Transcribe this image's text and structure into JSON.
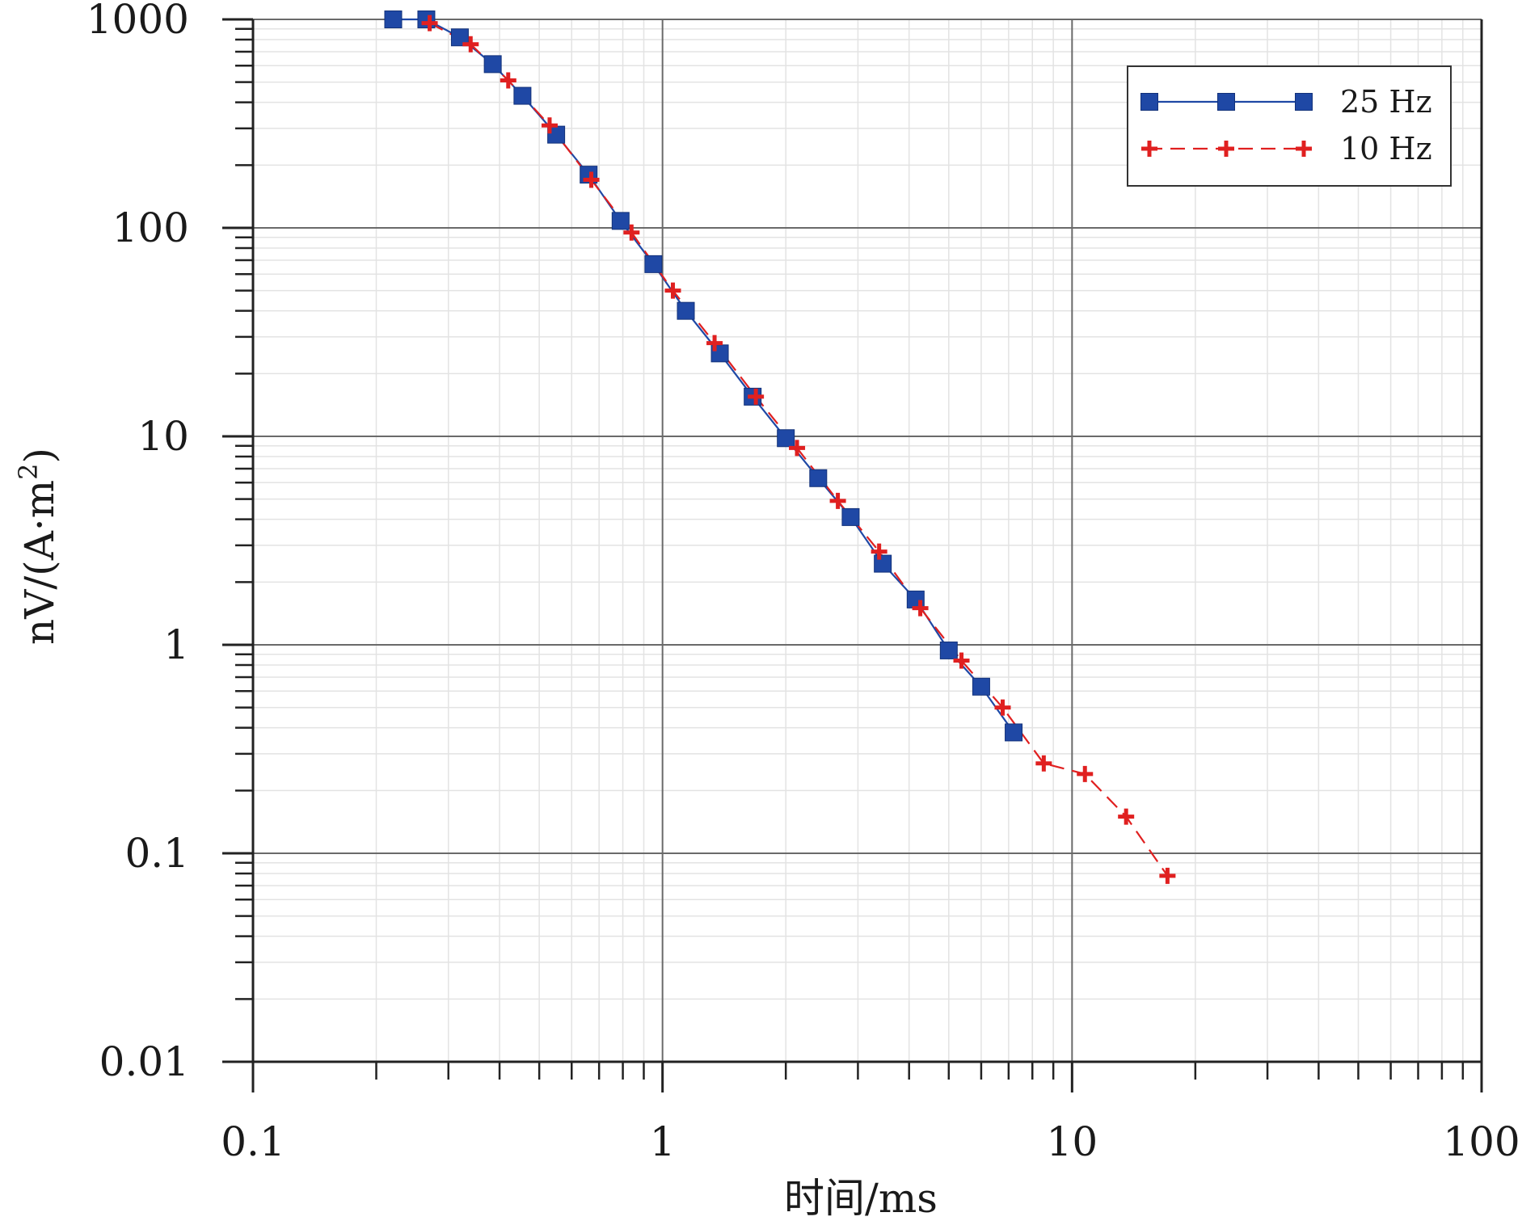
{
  "chart_data": {
    "type": "line",
    "xscale": "log",
    "yscale": "log",
    "xlim": [
      0.1,
      100
    ],
    "ylim": [
      0.01,
      1000
    ],
    "xlabel": "时间/ms",
    "ylabel": "nV/(A·m²)",
    "ylabel_main": "nV/(A·m",
    "ylabel_sup": "2",
    "ylabel_close": ")",
    "x_tick_labels": [
      "0.1",
      "1",
      "10",
      "100"
    ],
    "x_ticks": [
      0.1,
      1,
      10,
      100
    ],
    "y_tick_labels": [
      "0.01",
      "0.1",
      "1",
      "10",
      "100",
      "1000"
    ],
    "y_ticks": [
      0.01,
      0.1,
      1,
      10,
      100,
      1000
    ],
    "grid": true,
    "legend_position": "top-right",
    "series": [
      {
        "name": "25 Hz",
        "color": "#1f48a5",
        "line_style": "solid",
        "marker": "square",
        "x": [
          0.22,
          0.265,
          0.32,
          0.385,
          0.455,
          0.55,
          0.66,
          0.79,
          0.95,
          1.14,
          1.38,
          1.66,
          2.0,
          2.4,
          2.88,
          3.45,
          4.15,
          5.0,
          6.0,
          7.2
        ],
        "y": [
          1000,
          1000,
          820,
          610,
          430,
          280,
          180,
          108,
          67,
          40,
          25,
          15.5,
          9.8,
          6.3,
          4.1,
          2.45,
          1.65,
          0.94,
          0.63,
          0.38
        ]
      },
      {
        "name": "10 Hz",
        "color": "#e02020",
        "line_style": "dashed",
        "marker": "plus",
        "x": [
          0.27,
          0.34,
          0.42,
          0.53,
          0.67,
          0.84,
          1.06,
          1.34,
          1.69,
          2.13,
          2.68,
          3.38,
          4.26,
          5.37,
          6.77,
          8.53,
          10.75,
          13.55,
          17.1
        ],
        "y": [
          960,
          760,
          510,
          310,
          170,
          95,
          50,
          28,
          15.5,
          8.8,
          4.9,
          2.8,
          1.5,
          0.84,
          0.5,
          0.27,
          0.24,
          0.15,
          0.078
        ]
      }
    ]
  }
}
